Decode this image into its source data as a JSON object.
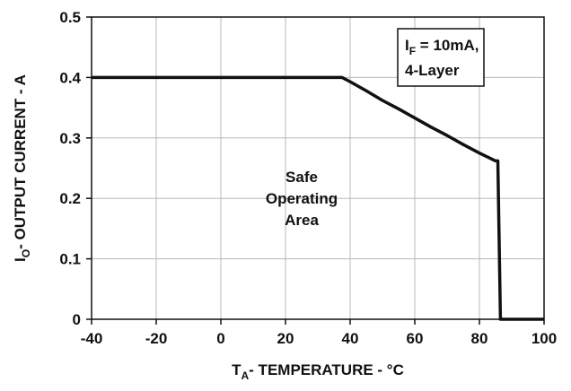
{
  "chart_data": {
    "type": "line",
    "title": "",
    "xlabel": {
      "main": "T",
      "sub": "A",
      "rest": "- TEMPERATURE - °C"
    },
    "ylabel": {
      "main": "I",
      "sub": "O",
      "rest": "- OUTPUT CURRENT - A"
    },
    "xlim": [
      -40,
      100
    ],
    "ylim": [
      0,
      0.5
    ],
    "x_ticks": [
      -40,
      -20,
      0,
      20,
      40,
      60,
      80,
      100
    ],
    "y_ticks": [
      0,
      0.1,
      0.2,
      0.3,
      0.4,
      0.5
    ],
    "x_tick_labels": [
      "-40",
      "-20",
      "0",
      "20",
      "40",
      "60",
      "80",
      "100"
    ],
    "y_tick_labels": [
      "0",
      "0.1",
      "0.2",
      "0.3",
      "0.4",
      "0.5"
    ],
    "grid": true,
    "series": [
      {
        "x": [
          -40,
          37.5,
          40,
          45,
          50,
          55,
          60,
          65,
          70,
          75,
          80,
          85,
          85.7,
          86.5,
          100
        ],
        "y": [
          0.4,
          0.4,
          0.393,
          0.378,
          0.362,
          0.348,
          0.333,
          0.318,
          0.304,
          0.289,
          0.275,
          0.262,
          0.262,
          0,
          0
        ],
        "color": "#111111"
      }
    ],
    "annotations": [
      {
        "lines": [
          "Safe",
          "Operating",
          "Area"
        ],
        "x": 25,
        "y": 0.2
      }
    ],
    "legend_box": {
      "main": "I",
      "sub": "F",
      "rest": " = 10mA,",
      "line2": "4-Layer",
      "placement": "top-right"
    }
  }
}
